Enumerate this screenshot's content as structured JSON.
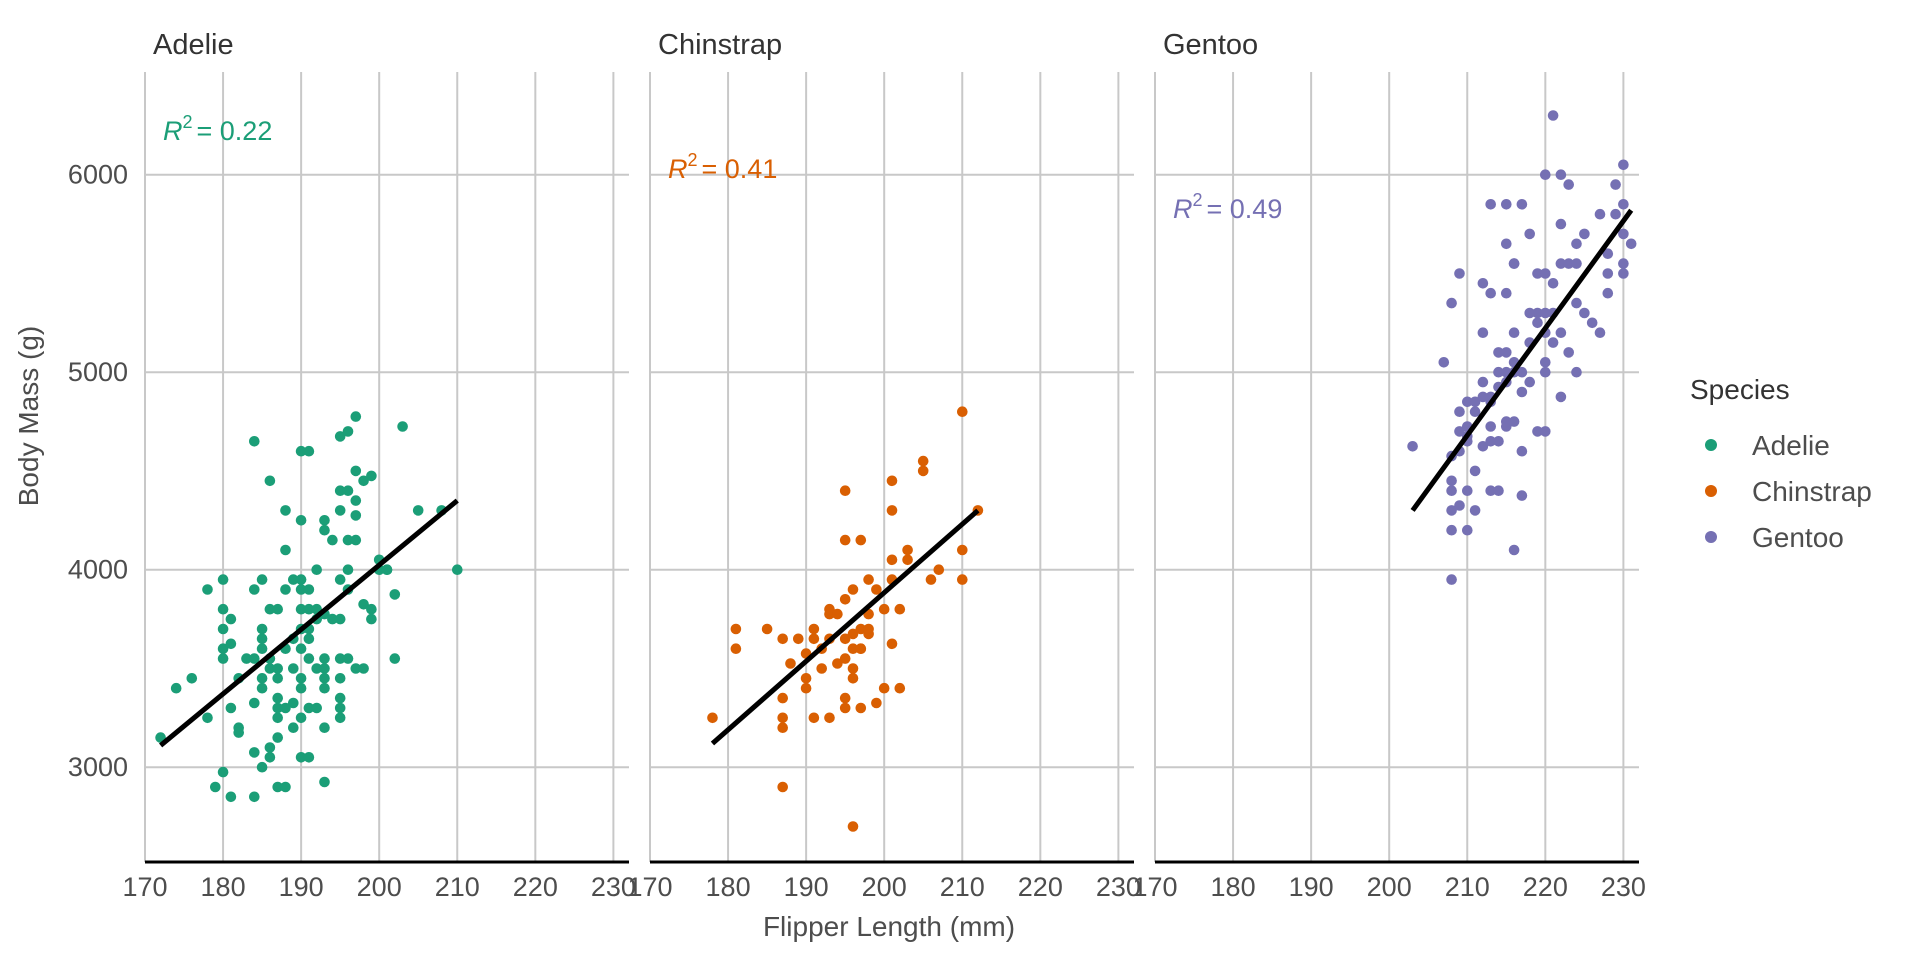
{
  "chart_data": {
    "type": "scatter",
    "xlabel": "Flipper Length (mm)",
    "ylabel": "Body Mass (g)",
    "xlim": [
      170,
      232
    ],
    "ylim": [
      2520,
      6520
    ],
    "x_ticks": [
      170,
      180,
      190,
      200,
      210,
      220,
      230
    ],
    "y_ticks": [
      3000,
      4000,
      5000,
      6000
    ],
    "grid": true,
    "legend": {
      "title": "Species",
      "position": "right",
      "entries": [
        "Adelie",
        "Chinstrap",
        "Gentoo"
      ]
    },
    "colors": {
      "Adelie": "#1b9e77",
      "Chinstrap": "#d95f02",
      "Gentoo": "#7570b3"
    },
    "panels": [
      {
        "name": "Adelie",
        "r2_text": "= 0.22",
        "r2_position": "top-left",
        "fit": {
          "x": [
            172,
            210
          ],
          "y": [
            3110,
            4350
          ]
        },
        "points": [
          [
            172,
            3150
          ],
          [
            174,
            3400
          ],
          [
            176,
            3450
          ],
          [
            178,
            3250
          ],
          [
            178,
            3900
          ],
          [
            179,
            2900
          ],
          [
            180,
            2975
          ],
          [
            180,
            3550
          ],
          [
            180,
            3600
          ],
          [
            180,
            3700
          ],
          [
            180,
            3800
          ],
          [
            180,
            3950
          ],
          [
            181,
            3625
          ],
          [
            181,
            3750
          ],
          [
            181,
            2850
          ],
          [
            181,
            3300
          ],
          [
            182,
            3200
          ],
          [
            182,
            3175
          ],
          [
            182,
            3450
          ],
          [
            183,
            3550
          ],
          [
            184,
            3075
          ],
          [
            184,
            3325
          ],
          [
            184,
            3550
          ],
          [
            184,
            2850
          ],
          [
            184,
            3900
          ],
          [
            184,
            4650
          ],
          [
            185,
            3000
          ],
          [
            185,
            3400
          ],
          [
            185,
            3450
          ],
          [
            185,
            3650
          ],
          [
            185,
            3700
          ],
          [
            185,
            3600
          ],
          [
            185,
            3950
          ],
          [
            186,
            3500
          ],
          [
            186,
            3100
          ],
          [
            186,
            3800
          ],
          [
            186,
            4450
          ],
          [
            186,
            3050
          ],
          [
            186,
            3550
          ],
          [
            187,
            3250
          ],
          [
            187,
            3300
          ],
          [
            187,
            3350
          ],
          [
            187,
            3450
          ],
          [
            187,
            3500
          ],
          [
            187,
            3800
          ],
          [
            187,
            2900
          ],
          [
            187,
            3150
          ],
          [
            188,
            3300
          ],
          [
            188,
            3600
          ],
          [
            188,
            3900
          ],
          [
            188,
            4300
          ],
          [
            188,
            2900
          ],
          [
            188,
            4100
          ],
          [
            189,
            3500
          ],
          [
            189,
            3200
          ],
          [
            189,
            3650
          ],
          [
            189,
            3950
          ],
          [
            189,
            3325
          ],
          [
            190,
            3050
          ],
          [
            190,
            3450
          ],
          [
            190,
            3600
          ],
          [
            190,
            3700
          ],
          [
            190,
            3800
          ],
          [
            190,
            3900
          ],
          [
            190,
            3950
          ],
          [
            190,
            4250
          ],
          [
            190,
            4600
          ],
          [
            190,
            3400
          ],
          [
            190,
            3250
          ],
          [
            191,
            3050
          ],
          [
            191,
            3800
          ],
          [
            191,
            3700
          ],
          [
            191,
            4600
          ],
          [
            191,
            3650
          ],
          [
            191,
            3900
          ],
          [
            191,
            3550
          ],
          [
            191,
            3300
          ],
          [
            192,
            3500
          ],
          [
            192,
            3750
          ],
          [
            192,
            3800
          ],
          [
            192,
            4000
          ],
          [
            192,
            3300
          ],
          [
            193,
            3450
          ],
          [
            193,
            3400
          ],
          [
            193,
            3500
          ],
          [
            193,
            3775
          ],
          [
            193,
            2925
          ],
          [
            193,
            4250
          ],
          [
            193,
            4200
          ],
          [
            193,
            3200
          ],
          [
            193,
            3550
          ],
          [
            194,
            4150
          ],
          [
            194,
            3750
          ],
          [
            195,
            3250
          ],
          [
            195,
            3300
          ],
          [
            195,
            3350
          ],
          [
            195,
            3450
          ],
          [
            195,
            3550
          ],
          [
            195,
            3750
          ],
          [
            195,
            3950
          ],
          [
            195,
            4300
          ],
          [
            195,
            4400
          ],
          [
            195,
            4675
          ],
          [
            196,
            3900
          ],
          [
            196,
            4400
          ],
          [
            196,
            3550
          ],
          [
            196,
            4700
          ],
          [
            196,
            4150
          ],
          [
            196,
            4000
          ],
          [
            197,
            3500
          ],
          [
            197,
            4150
          ],
          [
            197,
            4275
          ],
          [
            197,
            4500
          ],
          [
            197,
            4775
          ],
          [
            197,
            4350
          ],
          [
            198,
            3500
          ],
          [
            198,
            3825
          ],
          [
            198,
            4450
          ],
          [
            199,
            3750
          ],
          [
            199,
            3800
          ],
          [
            199,
            4475
          ],
          [
            200,
            4000
          ],
          [
            200,
            4050
          ],
          [
            201,
            4000
          ],
          [
            201,
            4000
          ],
          [
            202,
            3550
          ],
          [
            202,
            3875
          ],
          [
            203,
            4725
          ],
          [
            205,
            4300
          ],
          [
            208,
            4300
          ],
          [
            210,
            4000
          ]
        ]
      },
      {
        "name": "Chinstrap",
        "r2_text": "= 0.41",
        "r2_position": "top-left",
        "fit": {
          "x": [
            178,
            212
          ],
          "y": [
            3120,
            4300
          ]
        },
        "points": [
          [
            178,
            3250
          ],
          [
            181,
            3600
          ],
          [
            181,
            3700
          ],
          [
            185,
            3700
          ],
          [
            187,
            2900
          ],
          [
            187,
            3200
          ],
          [
            187,
            3250
          ],
          [
            187,
            3350
          ],
          [
            187,
            3650
          ],
          [
            188,
            3525
          ],
          [
            189,
            3650
          ],
          [
            190,
            3450
          ],
          [
            190,
            3400
          ],
          [
            190,
            3575
          ],
          [
            191,
            3700
          ],
          [
            191,
            3250
          ],
          [
            192,
            3600
          ],
          [
            192,
            3500
          ],
          [
            193,
            3650
          ],
          [
            193,
            3800
          ],
          [
            193,
            3775
          ],
          [
            194,
            3525
          ],
          [
            194,
            3775
          ],
          [
            195,
            3650
          ],
          [
            195,
            3350
          ],
          [
            195,
            3550
          ],
          [
            195,
            4150
          ],
          [
            195,
            4400
          ],
          [
            195,
            3300
          ],
          [
            195,
            3850
          ],
          [
            196,
            3450
          ],
          [
            196,
            3600
          ],
          [
            196,
            3675
          ],
          [
            196,
            3900
          ],
          [
            196,
            3500
          ],
          [
            197,
            3300
          ],
          [
            197,
            3700
          ],
          [
            197,
            3600
          ],
          [
            197,
            4150
          ],
          [
            198,
            3675
          ],
          [
            198,
            3700
          ],
          [
            198,
            3950
          ],
          [
            198,
            3775
          ],
          [
            199,
            3325
          ],
          [
            199,
            3900
          ],
          [
            200,
            3800
          ],
          [
            200,
            3400
          ],
          [
            201,
            3950
          ],
          [
            201,
            4050
          ],
          [
            201,
            4300
          ],
          [
            201,
            4450
          ],
          [
            201,
            3625
          ],
          [
            202,
            3800
          ],
          [
            202,
            3400
          ],
          [
            203,
            4050
          ],
          [
            203,
            4100
          ],
          [
            205,
            4500
          ],
          [
            205,
            4550
          ],
          [
            206,
            3950
          ],
          [
            207,
            4000
          ],
          [
            210,
            4100
          ],
          [
            210,
            3950
          ],
          [
            210,
            4800
          ],
          [
            212,
            4300
          ],
          [
            196,
            2700
          ],
          [
            193,
            3250
          ],
          [
            191,
            3650
          ],
          [
            197,
            3600
          ]
        ]
      },
      {
        "name": "Gentoo",
        "r2_text": "= 0.49",
        "r2_position": "top-left",
        "fit": {
          "x": [
            203,
            231
          ],
          "y": [
            4300,
            5820
          ]
        },
        "points": [
          [
            203,
            4625
          ],
          [
            207,
            5050
          ],
          [
            208,
            3950
          ],
          [
            208,
            4200
          ],
          [
            208,
            4300
          ],
          [
            208,
            4400
          ],
          [
            208,
            4450
          ],
          [
            208,
            4575
          ],
          [
            208,
            5350
          ],
          [
            209,
            4325
          ],
          [
            209,
            4600
          ],
          [
            209,
            4700
          ],
          [
            209,
            4800
          ],
          [
            209,
            5500
          ],
          [
            210,
            4200
          ],
          [
            210,
            4400
          ],
          [
            210,
            4650
          ],
          [
            210,
            4675
          ],
          [
            210,
            4725
          ],
          [
            210,
            4850
          ],
          [
            211,
            4300
          ],
          [
            211,
            4500
          ],
          [
            211,
            4800
          ],
          [
            211,
            4850
          ],
          [
            212,
            4625
          ],
          [
            212,
            4875
          ],
          [
            212,
            5200
          ],
          [
            212,
            4950
          ],
          [
            213,
            4400
          ],
          [
            213,
            4650
          ],
          [
            213,
            4725
          ],
          [
            213,
            4850
          ],
          [
            213,
            4875
          ],
          [
            213,
            5850
          ],
          [
            213,
            5400
          ],
          [
            214,
            4400
          ],
          [
            214,
            4650
          ],
          [
            214,
            4925
          ],
          [
            214,
            5000
          ],
          [
            215,
            4725
          ],
          [
            215,
            4750
          ],
          [
            215,
            4950
          ],
          [
            215,
            5000
          ],
          [
            215,
            5100
          ],
          [
            215,
            5400
          ],
          [
            215,
            5650
          ],
          [
            215,
            5850
          ],
          [
            216,
            4100
          ],
          [
            216,
            4750
          ],
          [
            216,
            5000
          ],
          [
            216,
            5050
          ],
          [
            216,
            5550
          ],
          [
            216,
            5200
          ],
          [
            217,
            4375
          ],
          [
            217,
            4900
          ],
          [
            217,
            5000
          ],
          [
            217,
            5850
          ],
          [
            217,
            4600
          ],
          [
            218,
            4950
          ],
          [
            218,
            5300
          ],
          [
            218,
            5700
          ],
          [
            219,
            4700
          ],
          [
            219,
            5250
          ],
          [
            219,
            5500
          ],
          [
            219,
            5300
          ],
          [
            220,
            4700
          ],
          [
            220,
            5000
          ],
          [
            220,
            5050
          ],
          [
            220,
            5200
          ],
          [
            220,
            5300
          ],
          [
            220,
            5500
          ],
          [
            220,
            6000
          ],
          [
            221,
            5150
          ],
          [
            221,
            5300
          ],
          [
            221,
            5450
          ],
          [
            221,
            6300
          ],
          [
            222,
            5200
          ],
          [
            222,
            5550
          ],
          [
            222,
            4875
          ],
          [
            222,
            5750
          ],
          [
            222,
            6000
          ],
          [
            223,
            5100
          ],
          [
            223,
            5550
          ],
          [
            223,
            5950
          ],
          [
            224,
            5350
          ],
          [
            224,
            5550
          ],
          [
            224,
            5650
          ],
          [
            225,
            5300
          ],
          [
            225,
            5700
          ],
          [
            226,
            5250
          ],
          [
            227,
            5200
          ],
          [
            227,
            5800
          ],
          [
            228,
            5400
          ],
          [
            228,
            5500
          ],
          [
            228,
            5600
          ],
          [
            229,
            5800
          ],
          [
            229,
            5950
          ],
          [
            230,
            5500
          ],
          [
            230,
            5550
          ],
          [
            230,
            5700
          ],
          [
            230,
            5850
          ],
          [
            230,
            6050
          ],
          [
            231,
            5650
          ],
          [
            216,
            5550
          ],
          [
            218,
            5150
          ],
          [
            212,
            5450
          ],
          [
            224,
            5000
          ],
          [
            214,
            5100
          ]
        ]
      }
    ]
  }
}
